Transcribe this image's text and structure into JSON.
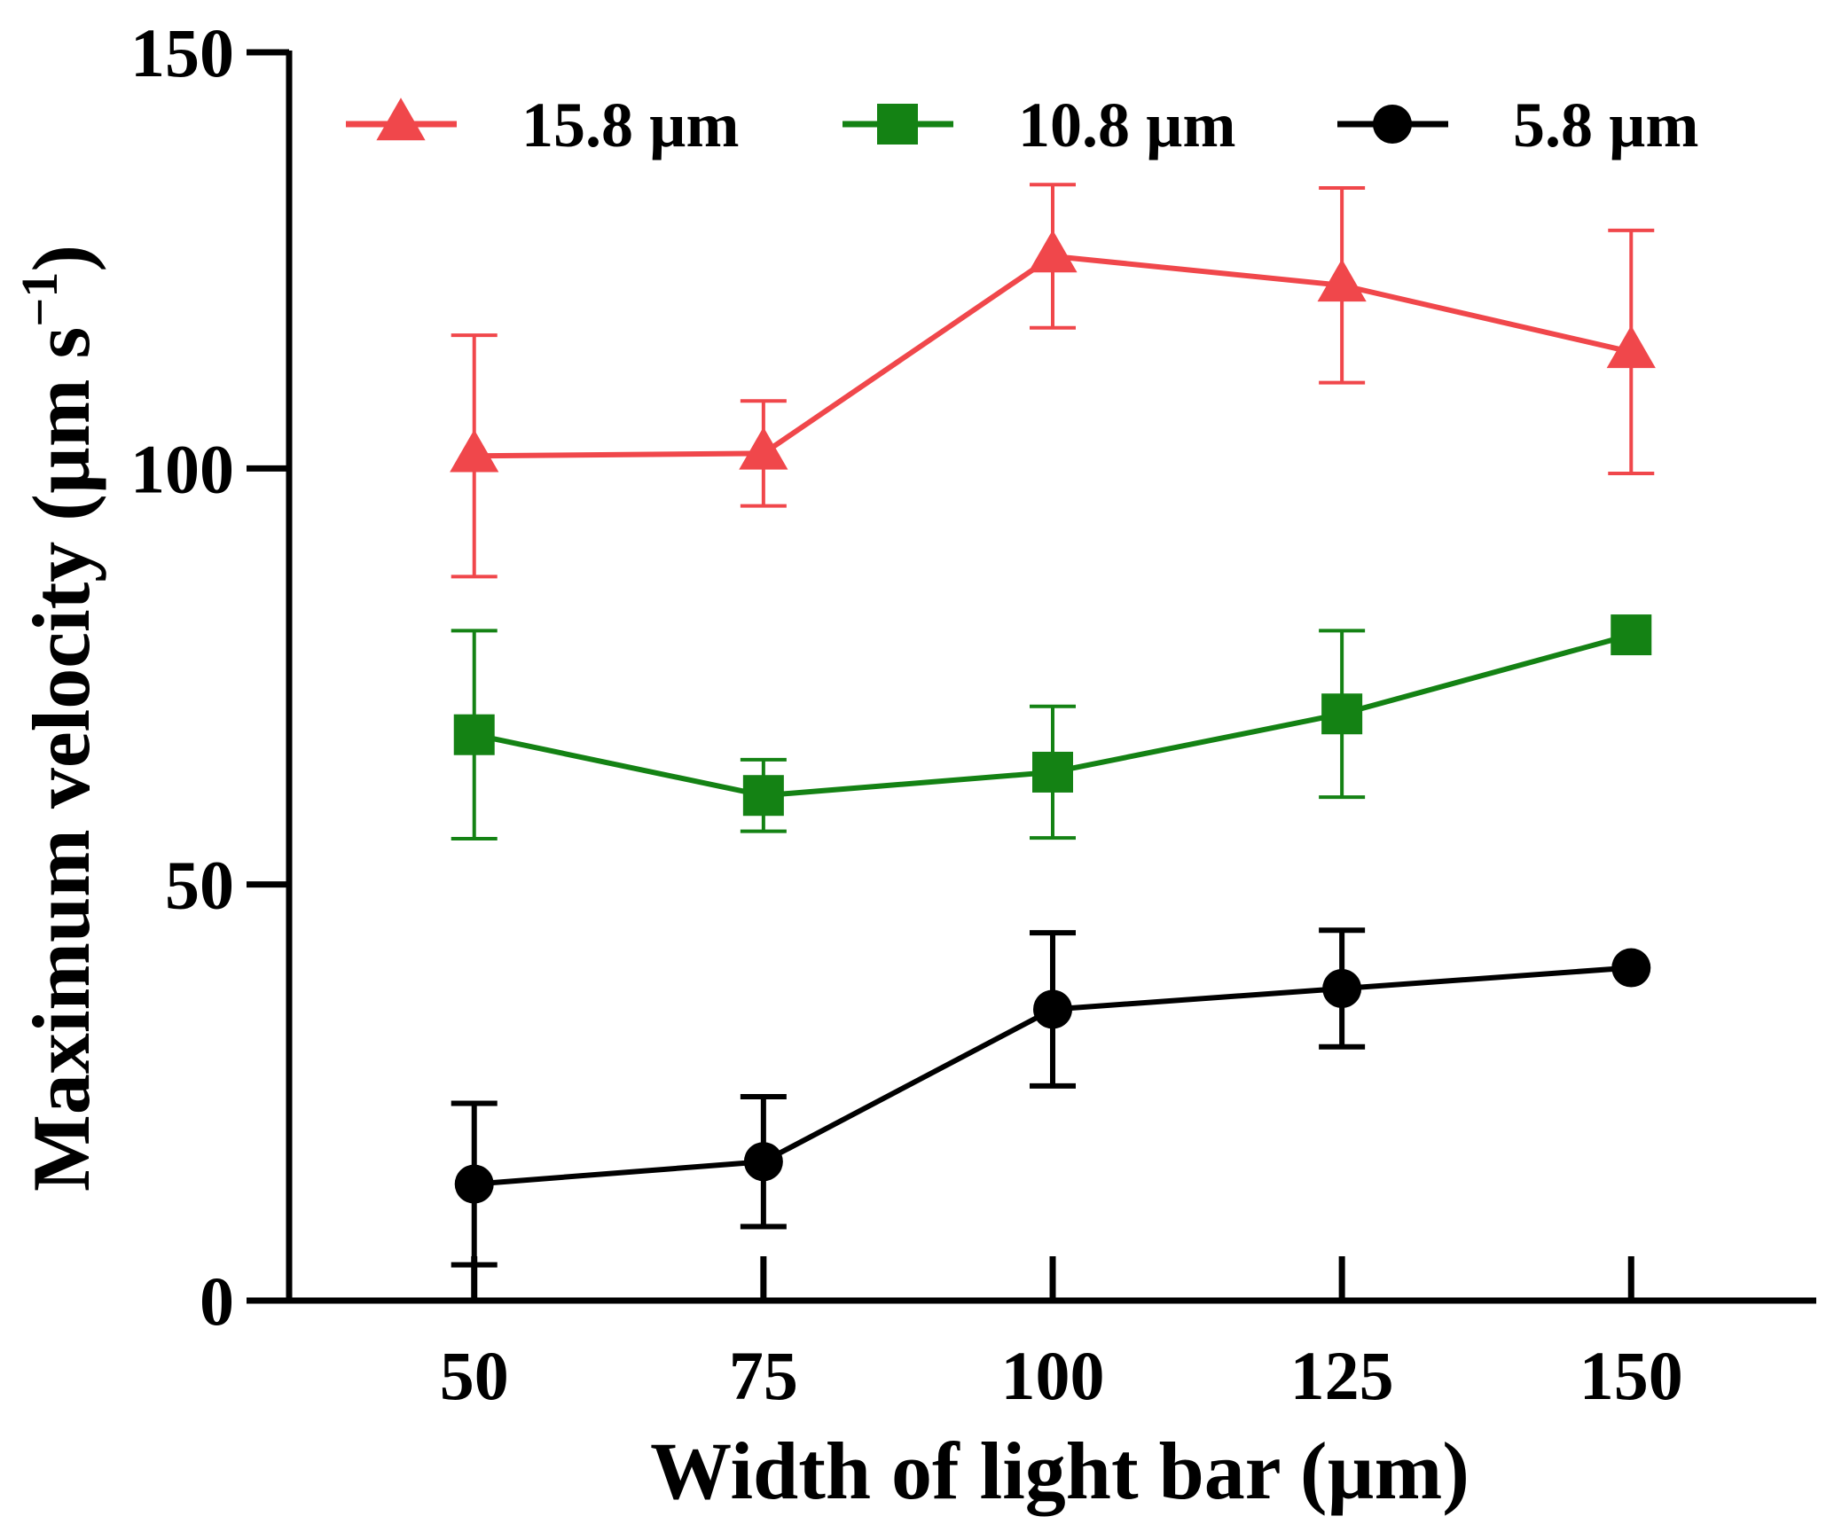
{
  "chart_data": {
    "type": "line",
    "title": "",
    "xlabel": "Width of light bar (µm)",
    "ylabel_main": "Maximum velocity (µm s",
    "ylabel_sup": "−1",
    "ylabel_close": ")",
    "x": [
      50,
      75,
      100,
      125,
      150
    ],
    "x_tick_labels": [
      "50",
      "75",
      "100",
      "125",
      "150"
    ],
    "xlim": [
      34,
      166
    ],
    "ylim": [
      0,
      150
    ],
    "y_ticks": [
      0,
      50,
      100,
      150
    ],
    "y_tick_labels": [
      "0",
      "50",
      "100",
      "150"
    ],
    "grid": false,
    "legend_position": "top",
    "series": [
      {
        "name": "15.8 µm",
        "color": "#f0474b",
        "marker": "triangle",
        "values": [
          101.5,
          101.8,
          125.5,
          122,
          114
        ],
        "errors": [
          14.5,
          6.3,
          8.6,
          11.7,
          14.6
        ]
      },
      {
        "name": "10.8 µm",
        "color": "#148214",
        "marker": "square",
        "values": [
          68,
          60.7,
          63.5,
          70.5,
          80
        ],
        "errors": [
          12.5,
          4.3,
          7.9,
          10,
          0
        ]
      },
      {
        "name": "5.8 µm",
        "color": "#000000",
        "marker": "circle",
        "values": [
          14,
          16.7,
          35,
          37.5,
          40
        ],
        "errors": [
          9.7,
          7.8,
          9.2,
          7,
          0
        ]
      }
    ]
  }
}
